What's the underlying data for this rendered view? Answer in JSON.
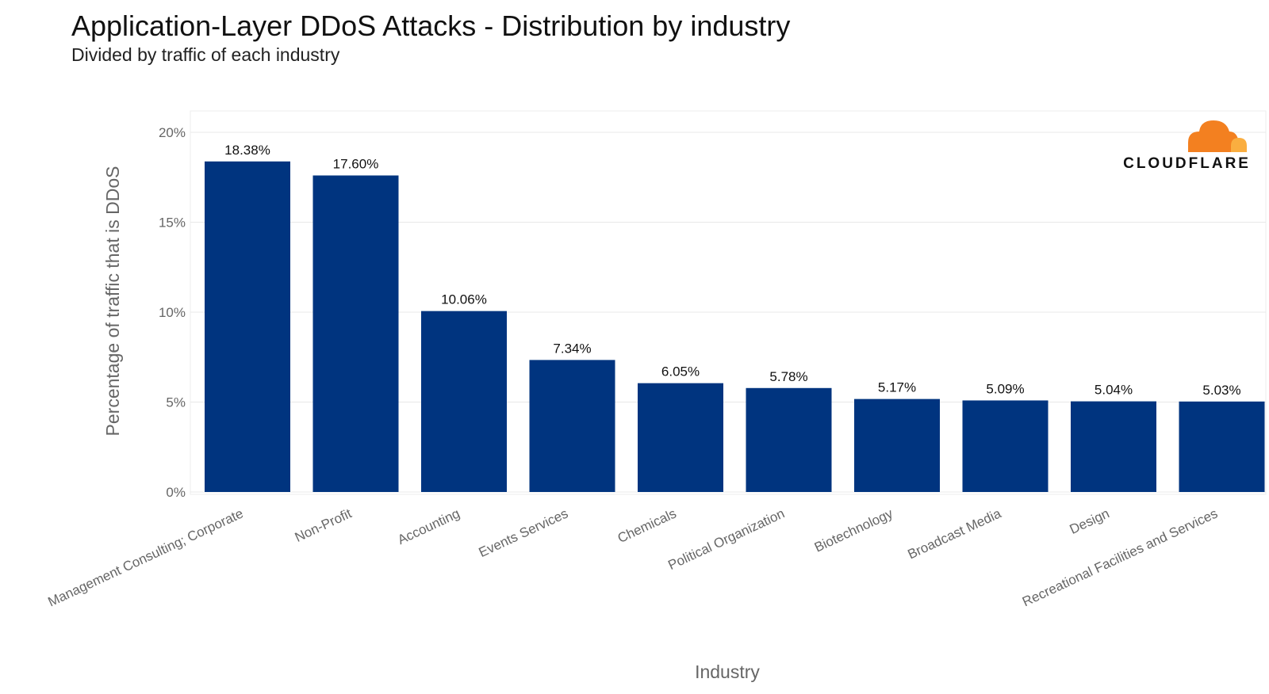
{
  "chart_data": {
    "type": "bar",
    "title": "Application-Layer DDoS Attacks - Distribution by industry",
    "subtitle": "Divided by traffic of each industry",
    "xlabel": "Industry",
    "ylabel": "Percentage of traffic that is DDoS",
    "ylim": [
      0,
      21.2
    ],
    "yticks": [
      0,
      5,
      10,
      15,
      20
    ],
    "ytick_labels": [
      "0%",
      "5%",
      "10%",
      "15%",
      "20%"
    ],
    "grid": true,
    "bar_color": "#00347f",
    "categories": [
      "Management Consulting; Corporate",
      "Non-Profit",
      "Accounting",
      "Events Services",
      "Chemicals",
      "Political Organization",
      "Biotechnology",
      "Broadcast Media",
      "Design",
      "Recreational Facilities and Services"
    ],
    "values": [
      18.38,
      17.6,
      10.06,
      7.34,
      6.05,
      5.78,
      5.17,
      5.09,
      5.04,
      5.03
    ],
    "value_labels": [
      "18.38%",
      "17.60%",
      "10.06%",
      "7.34%",
      "6.05%",
      "5.78%",
      "5.17%",
      "5.09%",
      "5.04%",
      "5.03%"
    ]
  },
  "logo": {
    "text": "CLOUDFLARE",
    "colors": {
      "orange": "#f38020",
      "light_orange": "#faae40"
    }
  }
}
